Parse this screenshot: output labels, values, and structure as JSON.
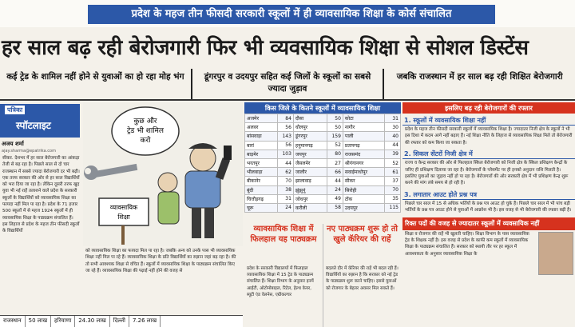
{
  "kicker": "प्रदेश के महज तीन फीसदी सरकारी स्कूलों में ही व्यावसायिक शिक्षा के कोर्स संचालित",
  "headline": "हर साल बढ़ रही बेरोजगारी फिर भी व्यवसायिक शिक्षा से सोशल डिस्टेंस",
  "subheads": [
    "कई ट्रेड के शामिल नहीं होने से युवाओं का हो रहा मोह भंग",
    "डूंगरपुर व उदयपुर सहित कई जिलों के स्कूलों का सबसे ज्यादा जुड़ाव",
    "जबकि राजस्थान में हर साल बढ़ रही शिक्षित बेरोजगारी"
  ],
  "spotlight": {
    "small": "पत्रिका",
    "big": "स्पॉटलाइट"
  },
  "byline": "अजय शर्मा",
  "byline_mail": "ajay.sharma@epatrika.com",
  "left_text": "सीकर. देशभर में हर साल बेरोजगारी का आंकड़ा तेजी से बढ़ रहा है। पिछले साल से दो चार राजस्थान में सबसे ज्यादा बेरोजगारी दर भी बढ़ी। एक तरफ सरकार की ओर से हर साल विद्यार्थियों को भरा दिया जा रहा है। लेकिन दूसरी तरफ खुद युवा भी नई राहें तलाशने वाले प्रदेश के सरकारी स्कूलों के विद्यार्थियों को व्यावसायिक शिक्षा का फायदा नहीं मिल पा रहा है। प्रदेश के 71 हजार 500 स्कूलों में से महज 1924 स्कूलों में ही व्यावसायिक शिक्षा के पाठ्यक्रम संचालित हैं। इस लिहाज से प्रदेश के महज तीन फीसदी स्कूलों के विद्यार्थियों",
  "illus": {
    "bubble": [
      "कुछ और",
      "ट्रेड भी शामिल",
      "करो"
    ],
    "sign": [
      "व्यावसायिक",
      "शिक्षा"
    ]
  },
  "table": {
    "title": "किस जिले के कितने स्कूलों में व्यावसायिक शिक्षा",
    "rows": [
      [
        "अजमेर",
        "84",
        "दौसा",
        "50",
        "कोटा",
        "31"
      ],
      [
        "अलवर",
        "56",
        "धौलपुर",
        "50",
        "नागौर",
        "30"
      ],
      [
        "बांसवाड़ा",
        "143",
        "डूंगरपुर",
        "159",
        "पाली",
        "40"
      ],
      [
        "बारां",
        "56",
        "हनुमानगढ़",
        "52",
        "प्रतापगढ़",
        "44"
      ],
      [
        "बाड़मेर",
        "103",
        "जयपुर",
        "80",
        "राजसमंद",
        "39"
      ],
      [
        "भरतपुर",
        "44",
        "जैसलमेर",
        "27",
        "श्रीगंगानगर",
        "52"
      ],
      [
        "भीलवाड़ा",
        "62",
        "जालौर",
        "66",
        "सवाईमाधोपुर",
        "61"
      ],
      [
        "बीकानेर",
        "70",
        "झालावाड़",
        "44",
        "सीकर",
        "37"
      ],
      [
        "बूंदी",
        "38",
        "झुंझुनूं",
        "24",
        "सिरोही",
        "70"
      ],
      [
        "चित्तौड़गढ़",
        "31",
        "जोधपुर",
        "49",
        "टोंक",
        "35"
      ],
      [
        "चूरू",
        "24",
        "करौली",
        "58",
        "उदयपुर",
        "115"
      ]
    ]
  },
  "right": {
    "title": "इसलिए बढ़ रही बेरोजगारों की रफ्तार",
    "s1_head": "1. स्कूलों में व्यवसायिक शिक्षा नहीं",
    "s1_text": "प्रदेश के महज तीन फीसदी सरकारी स्कूलों में व्यावसायिक शिक्षा है। ज्यादातर निजी क्षेत्र के स्कूलों ने भी इस दिशा में कदम आगे नहीं बढ़ाए हैं। नई शिक्षा नीति के लिहाज से व्यावसायिक शिक्षा मिले तो बेरोजगारी की रफ्तार को कम किया जा सकता है।",
    "s2_head": "2. सिकल सेंटरों निजी क्षेत्र में",
    "s2_text": "राज्य व केन्द्र सरकार की ओर से फिलहाल स्किल बेरोजगारी को निजी क्षेत्र के स्किल प्रशिक्षण केन्द्रों के जरिए ही प्रशिक्षण दिलाया जा रहा है। बेरोजगारों के प्लेसमेंट पर ही इनको अनुदान राशि मिलती है। इसलिए युवाओं का जुड़ाव नहीं हो पा रहा है। बेरोजगारों की ओर सरकारी क्षेत्र में भी प्रशिक्षण केन्द्र शुरू करने की मांग लंबे समय से हो रही है।",
    "s3_head": "3. लगातार आउट होते प्रश्न पत्र",
    "s3_text": "पिछले चार साल में 15 से अधिक भर्तियों के प्रश्न पत्र आउट हो चुके हैं। पिछले चार साल में भी पांच बड़ी भर्तियों के प्रश्न पत्र आउट होने से युवाओं में आक्रोश भी है। इस वजह से भी बेरोजगारी की रफ्तार बढ़ी है।",
    "title2": "रिक्त पदों की वजह से ज्यादातर स्कूलों में व्यवसायिक नहीं",
    "s4_text": "शिक्षा व रोजगार की राहें भी खुलती चाहिए। शिक्षा विभाग के पास व्यावसायिक ट्रेड के शिक्षक नहीं है। इस वजह से प्रदेश के काफी कम स्कूलों में व्यावसायिक शिक्षा के पाठ्यक्रम संचालित हैं। सरकार को स्थायी तौर पर हर स्कूल में आवश्यकता के अनुसार व्यावसायिक शिक्षा के"
  },
  "mid_lower_text": "को व्यावसायिक शिक्षा का फायदा मिल पा रहा है। जबकि अन्य को उनके पास भी व्यावसायिक शिक्षा नहीं मिल पा रहे हैं। व्यावसायिक शिक्षा के प्रति विद्यार्थियों का रुझान जहां बढ़ रहा है। की तो सभी आवश्यक शिक्षा से वंचित हैं। स्कूलों में व्यावसायिक शिक्षा के पाठ्यक्रम संचालित किए जा रहे हैं। व्यावसायिक शिक्षा की पढ़ाई नहीं होने की वजह से",
  "box_a": {
    "head": "व्यावसायिक शिक्षा में फिलहाल यह पाठ्यक्रम",
    "text": "प्रदेश के सरकारी विद्यालयों में फिलहाल व्यावसायिक शिक्षा में 15 ट्रेड के पाठ्यक्रम संचालित हैं। शिक्षा विभाग के अनुसार इनमें आईटी, ऑटोमोबाइल, रिटेल, हेल्थ केयर, ब्यूटी एंड वेलनेस, एग्रीकल्चर"
  },
  "box_b": {
    "head": "नए पाठ्यक्रम शुरू हो तो खुले कॅरियर की राहें",
    "text": "बदलते दौर में कॅरियर की राहें भी बदल रही हैं। विद्यार्थियों का रुझान है कि सरकार को नई ट्रेड के पाठ्यक्रम शुरू करने चाहिए। इससे युवाओं को रोजगार के बेहतर अवसर मिल सकते हैं।"
  },
  "strip": [
    "राजस्थान",
    "50 लाख",
    "हरियाणा",
    "24.30 लाख",
    "दिल्ली",
    "7.26 लाख"
  ],
  "colors": {
    "blue": "#2c58a8",
    "red": "#d6321e"
  }
}
